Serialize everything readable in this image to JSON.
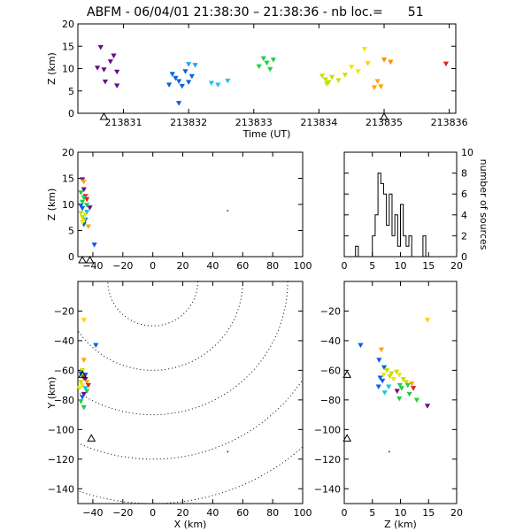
{
  "title": {
    "prefix": "ABFM",
    "date": "06/04/01",
    "time_range": "21:38:30 – 21:38:36",
    "count_label": "nb loc.=",
    "count": "51"
  },
  "chart_data": [
    {
      "id": "time_height",
      "type": "scatter",
      "xlabel": "Time (UT)",
      "ylabel": "Z (km)",
      "xlim": [
        213830.3,
        213836.1
      ],
      "ylim": [
        0,
        20
      ],
      "x_ticks": [
        213831,
        213832,
        213833,
        213834,
        213835,
        213836
      ],
      "y_ticks": [
        0,
        5,
        10,
        15,
        20
      ],
      "stations": [
        213830.7,
        213835.0
      ],
      "points": [
        {
          "x": 213830.65,
          "y": 14.8,
          "c": "#6a0a8a"
        },
        {
          "x": 213830.85,
          "y": 12.9,
          "c": "#6a0a8a"
        },
        {
          "x": 213830.8,
          "y": 11.6,
          "c": "#6a0a8a"
        },
        {
          "x": 213830.7,
          "y": 9.8,
          "c": "#6a0a8a"
        },
        {
          "x": 213830.9,
          "y": 9.3,
          "c": "#6a0a8a"
        },
        {
          "x": 213830.72,
          "y": 7.1,
          "c": "#6a0a8a"
        },
        {
          "x": 213830.9,
          "y": 6.2,
          "c": "#6a0a8a"
        },
        {
          "x": 213830.6,
          "y": 10.2,
          "c": "#6a0a8a"
        },
        {
          "x": 213831.75,
          "y": 8.8,
          "c": "#0a60e0"
        },
        {
          "x": 213831.8,
          "y": 7.9,
          "c": "#0a60e0"
        },
        {
          "x": 213831.85,
          "y": 7.2,
          "c": "#0a60e0"
        },
        {
          "x": 213831.7,
          "y": 6.4,
          "c": "#0a60e0"
        },
        {
          "x": 213831.9,
          "y": 6.1,
          "c": "#0a60e0"
        },
        {
          "x": 213831.95,
          "y": 9.4,
          "c": "#0a60e0"
        },
        {
          "x": 213832.05,
          "y": 8.3,
          "c": "#0a60e0"
        },
        {
          "x": 213832.0,
          "y": 7.0,
          "c": "#0a60e0"
        },
        {
          "x": 213831.85,
          "y": 2.3,
          "c": "#0a60e0"
        },
        {
          "x": 213832.0,
          "y": 11.0,
          "c": "#2aa0f0"
        },
        {
          "x": 213832.1,
          "y": 10.8,
          "c": "#2aa0f0"
        },
        {
          "x": 213832.35,
          "y": 6.8,
          "c": "#22c0e8"
        },
        {
          "x": 213832.45,
          "y": 6.4,
          "c": "#22c0e8"
        },
        {
          "x": 213832.6,
          "y": 7.3,
          "c": "#22c0e8"
        },
        {
          "x": 213833.15,
          "y": 12.3,
          "c": "#20d040"
        },
        {
          "x": 213833.2,
          "y": 11.3,
          "c": "#20d040"
        },
        {
          "x": 213833.08,
          "y": 10.5,
          "c": "#20d040"
        },
        {
          "x": 213833.25,
          "y": 9.9,
          "c": "#20d040"
        },
        {
          "x": 213833.3,
          "y": 12.0,
          "c": "#20d040"
        },
        {
          "x": 213834.05,
          "y": 8.4,
          "c": "#c8e000"
        },
        {
          "x": 213834.1,
          "y": 7.6,
          "c": "#c8e000"
        },
        {
          "x": 213834.15,
          "y": 7.0,
          "c": "#c8e000"
        },
        {
          "x": 213834.2,
          "y": 8.1,
          "c": "#c8e000"
        },
        {
          "x": 213834.3,
          "y": 7.4,
          "c": "#c8e000"
        },
        {
          "x": 213834.4,
          "y": 8.6,
          "c": "#c8e000"
        },
        {
          "x": 213834.12,
          "y": 6.6,
          "c": "#c8e000"
        },
        {
          "x": 213834.5,
          "y": 10.4,
          "c": "#f0e800"
        },
        {
          "x": 213834.6,
          "y": 9.4,
          "c": "#f0e800"
        },
        {
          "x": 213834.7,
          "y": 14.4,
          "c": "#f0e800"
        },
        {
          "x": 213834.75,
          "y": 11.2,
          "c": "#ffd000"
        },
        {
          "x": 213834.85,
          "y": 5.8,
          "c": "#ffa500"
        },
        {
          "x": 213834.95,
          "y": 6.0,
          "c": "#ffa500"
        },
        {
          "x": 213834.9,
          "y": 7.2,
          "c": "#ffa500"
        },
        {
          "x": 213835.0,
          "y": 12.0,
          "c": "#ff8c00"
        },
        {
          "x": 213835.1,
          "y": 11.5,
          "c": "#ff8c00"
        },
        {
          "x": 213835.95,
          "y": 11.1,
          "c": "#e02020"
        }
      ]
    },
    {
      "id": "x_height",
      "type": "scatter",
      "xlabel": "",
      "ylabel": "Z (km)",
      "xlim": [
        -50,
        100
      ],
      "ylim": [
        0,
        20
      ],
      "x_ticks": [
        -40,
        -20,
        0,
        20,
        40,
        60,
        80,
        100
      ],
      "y_ticks": [
        0,
        5,
        10,
        15,
        20
      ],
      "stations": [
        -47,
        -42
      ],
      "points": [
        {
          "x": -47,
          "y": 14.8,
          "c": "#6a0a8a"
        },
        {
          "x": -46,
          "y": 12.9,
          "c": "#6a0a8a"
        },
        {
          "x": -45,
          "y": 11.6,
          "c": "#e02020"
        },
        {
          "x": -44,
          "y": 11.0,
          "c": "#e02020"
        },
        {
          "x": -48,
          "y": 9.8,
          "c": "#0a60e0"
        },
        {
          "x": -47,
          "y": 9.3,
          "c": "#0a60e0"
        },
        {
          "x": -45,
          "y": 7.1,
          "c": "#0a60e0"
        },
        {
          "x": -46,
          "y": 6.2,
          "c": "#0a60e0"
        },
        {
          "x": -48,
          "y": 12.3,
          "c": "#20d040"
        },
        {
          "x": -46,
          "y": 11.3,
          "c": "#20d040"
        },
        {
          "x": -47,
          "y": 10.5,
          "c": "#20d040"
        },
        {
          "x": -44,
          "y": 9.9,
          "c": "#20d040"
        },
        {
          "x": -48,
          "y": 8.4,
          "c": "#c8e000"
        },
        {
          "x": -47,
          "y": 7.6,
          "c": "#c8e000"
        },
        {
          "x": -46,
          "y": 7.0,
          "c": "#c8e000"
        },
        {
          "x": -45,
          "y": 8.1,
          "c": "#f0e800"
        },
        {
          "x": -47,
          "y": 6.6,
          "c": "#f0e800"
        },
        {
          "x": -46,
          "y": 14.4,
          "c": "#ffa500"
        },
        {
          "x": -43,
          "y": 5.8,
          "c": "#ffa500"
        },
        {
          "x": -42,
          "y": 9.4,
          "c": "#6a0a8a"
        },
        {
          "x": -44,
          "y": 8.6,
          "c": "#22c0e8"
        },
        {
          "x": -39,
          "y": 2.3,
          "c": "#0a60e0"
        },
        {
          "x": 50,
          "y": 8.8,
          "c": "#000000",
          "tiny": true
        }
      ]
    },
    {
      "id": "histogram",
      "type": "bar",
      "xlabel": "",
      "ylabel": "number of sources",
      "xlim": [
        0,
        20
      ],
      "ylim": [
        0,
        10
      ],
      "x_ticks": [
        0,
        5,
        10,
        15,
        20
      ],
      "y_ticks": [
        0,
        2,
        4,
        6,
        8,
        10
      ],
      "bin_width": 0.5,
      "bin_starts": [
        2.0,
        2.5,
        3.0,
        3.5,
        4.0,
        4.5,
        5.0,
        5.5,
        6.0,
        6.5,
        7.0,
        7.5,
        8.0,
        8.5,
        9.0,
        9.5,
        10.0,
        10.5,
        11.0,
        11.5,
        12.0,
        12.5,
        13.0,
        13.5,
        14.0,
        14.5,
        15.0
      ],
      "values": [
        1,
        0,
        0,
        0,
        0,
        0,
        2,
        4,
        8,
        7,
        6,
        3,
        6,
        2,
        4,
        1,
        5,
        2,
        1,
        2,
        0,
        0,
        0,
        0,
        2,
        0,
        0
      ]
    },
    {
      "id": "plan_view",
      "type": "scatter",
      "xlabel": "X (km)",
      "ylabel": "Y (km)",
      "xlim": [
        -50,
        100
      ],
      "ylim": [
        -150,
        0
      ],
      "x_ticks": [
        -40,
        -20,
        0,
        20,
        40,
        60,
        80,
        100
      ],
      "y_ticks": [
        -140,
        -120,
        -100,
        -80,
        -60,
        -40,
        -20
      ],
      "range_rings": [
        30,
        60,
        90,
        120,
        150
      ],
      "stations": [
        {
          "x": -47,
          "y": -63
        },
        {
          "x": -41,
          "y": -106
        }
      ],
      "points": [
        {
          "x": -46,
          "y": -26,
          "c": "#ffd000"
        },
        {
          "x": -38,
          "y": -43,
          "c": "#0a60e0"
        },
        {
          "x": -46,
          "y": -53,
          "c": "#ffa500"
        },
        {
          "x": -47,
          "y": -60,
          "c": "#c8e000"
        },
        {
          "x": -48,
          "y": -62,
          "c": "#0a60e0"
        },
        {
          "x": -47,
          "y": -64,
          "c": "#20d040"
        },
        {
          "x": -46,
          "y": -65,
          "c": "#e02020"
        },
        {
          "x": -45,
          "y": -66,
          "c": "#6a0a8a"
        },
        {
          "x": -48,
          "y": -68,
          "c": "#c8e000"
        },
        {
          "x": -47,
          "y": -70,
          "c": "#f0e800"
        },
        {
          "x": -45,
          "y": -72,
          "c": "#22c0e8"
        },
        {
          "x": -44,
          "y": -74,
          "c": "#20d040"
        },
        {
          "x": -46,
          "y": -76,
          "c": "#6a0a8a"
        },
        {
          "x": -47,
          "y": -78,
          "c": "#0a60e0"
        },
        {
          "x": -48,
          "y": -81,
          "c": "#20d040"
        },
        {
          "x": -46,
          "y": -85,
          "c": "#20d040"
        },
        {
          "x": -44,
          "y": -68,
          "c": "#ffa500"
        },
        {
          "x": -43,
          "y": -70,
          "c": "#e02020"
        },
        {
          "x": -49,
          "y": -72,
          "c": "#f0e800"
        },
        {
          "x": -45,
          "y": -63,
          "c": "#0a60e0"
        },
        {
          "x": 50,
          "y": -115,
          "c": "#000000",
          "tiny": true
        }
      ]
    },
    {
      "id": "z_y",
      "type": "scatter",
      "xlabel": "Z (km)",
      "ylabel": "",
      "xlim": [
        0,
        20
      ],
      "ylim": [
        -150,
        0
      ],
      "x_ticks": [
        0,
        5,
        10,
        15,
        20
      ],
      "y_ticks": [
        -140,
        -120,
        -100,
        -80,
        -60,
        -40,
        -20
      ],
      "stations": [
        {
          "x": 0.5,
          "y": -63
        },
        {
          "x": 0.5,
          "y": -106
        }
      ],
      "points": [
        {
          "x": 14.8,
          "y": -26,
          "c": "#ffd000"
        },
        {
          "x": 2.9,
          "y": -43,
          "c": "#0a60e0"
        },
        {
          "x": 6.6,
          "y": -46,
          "c": "#ffa500"
        },
        {
          "x": 6.2,
          "y": -53,
          "c": "#0a60e0"
        },
        {
          "x": 7.1,
          "y": -58,
          "c": "#0a60e0"
        },
        {
          "x": 7.6,
          "y": -60,
          "c": "#c8e000"
        },
        {
          "x": 8.4,
          "y": -62,
          "c": "#c8e000"
        },
        {
          "x": 9.3,
          "y": -61,
          "c": "#c8e000"
        },
        {
          "x": 9.8,
          "y": -63,
          "c": "#f0e800"
        },
        {
          "x": 7.0,
          "y": -63,
          "c": "#f0e800"
        },
        {
          "x": 6.4,
          "y": -65,
          "c": "#0a60e0"
        },
        {
          "x": 6.8,
          "y": -67,
          "c": "#0a60e0"
        },
        {
          "x": 8.1,
          "y": -64,
          "c": "#c8e000"
        },
        {
          "x": 8.8,
          "y": -66,
          "c": "#f0e800"
        },
        {
          "x": 10.5,
          "y": -66,
          "c": "#c8e000"
        },
        {
          "x": 11.0,
          "y": -68,
          "c": "#c8e000"
        },
        {
          "x": 12.0,
          "y": -69,
          "c": "#ffa500"
        },
        {
          "x": 11.3,
          "y": -70,
          "c": "#20d040"
        },
        {
          "x": 10.2,
          "y": -72,
          "c": "#20d040"
        },
        {
          "x": 9.9,
          "y": -70,
          "c": "#20d040"
        },
        {
          "x": 9.4,
          "y": -74,
          "c": "#6a0a8a"
        },
        {
          "x": 6.1,
          "y": -71,
          "c": "#0a60e0"
        },
        {
          "x": 7.9,
          "y": -71,
          "c": "#22c0e8"
        },
        {
          "x": 12.3,
          "y": -72,
          "c": "#e02020"
        },
        {
          "x": 11.6,
          "y": -76,
          "c": "#20d040"
        },
        {
          "x": 7.2,
          "y": -75,
          "c": "#22c0e8"
        },
        {
          "x": 9.8,
          "y": -79,
          "c": "#20d040"
        },
        {
          "x": 12.9,
          "y": -80,
          "c": "#20d040"
        },
        {
          "x": 14.8,
          "y": -84,
          "c": "#6a0a8a"
        },
        {
          "x": 8.0,
          "y": -115,
          "c": "#000000",
          "tiny": true
        }
      ]
    }
  ]
}
